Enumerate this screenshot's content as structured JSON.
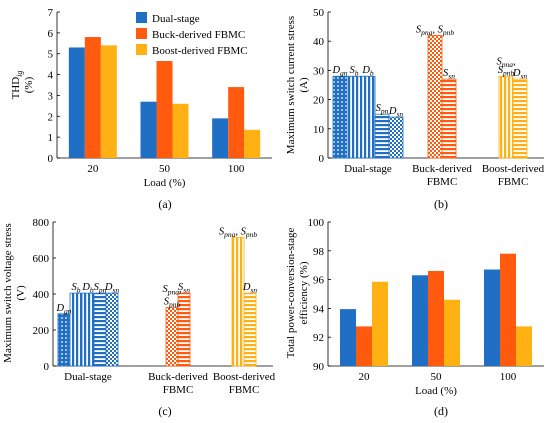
{
  "colors": {
    "dual": "#1f6fc5",
    "buck": "#ff5a0e",
    "boost": "#ffb012",
    "dual_light": "#5aa0e8",
    "buck_light": "#ff8a4a",
    "boost_light": "#ffd24a"
  },
  "legend": {
    "dual": "Dual-stage",
    "buck": "Buck-derived FBMC",
    "boost": "Boost-derived FBMC"
  },
  "chart_data": [
    {
      "panel": "(a)",
      "type": "bar",
      "ylabel_main": "THD",
      "ylabel_sub": "ig",
      "ylabel_unit": "(%)",
      "xlabel": "Load (%)",
      "ylim": [
        0,
        7
      ],
      "yticks": [
        "0",
        "1",
        "2",
        "3",
        "4",
        "5",
        "6",
        "7"
      ],
      "categories": [
        "20",
        "50",
        "100"
      ],
      "series": [
        {
          "name": "Dual-stage",
          "values": [
            5.3,
            2.7,
            1.9
          ]
        },
        {
          "name": "Buck-derived FBMC",
          "values": [
            5.8,
            4.65,
            3.4
          ]
        },
        {
          "name": "Boost-derived FBMC",
          "values": [
            5.4,
            2.6,
            1.35
          ]
        }
      ]
    },
    {
      "panel": "(b)",
      "type": "bar",
      "ylabel": "Maximum switch current stress",
      "ylabel_unit": "(A)",
      "ylim": [
        0,
        50
      ],
      "yticks": [
        "0",
        "10",
        "20",
        "30",
        "40",
        "50"
      ],
      "groups": [
        {
          "label": [
            "Dual-stage"
          ],
          "bars": [
            {
              "color": "dual",
              "pattern": "dots",
              "value": 28
            },
            {
              "color": "dual",
              "pattern": "vlines",
              "value": 28
            },
            {
              "color": "dual",
              "pattern": "vlines",
              "value": 28
            },
            {
              "color": "dual",
              "pattern": "hlines",
              "value": 15
            },
            {
              "color": "dual",
              "pattern": "checker",
              "value": 14
            }
          ]
        },
        {
          "label": [
            "Buck-derived",
            "FBMC"
          ],
          "bars": [
            {
              "color": "buck",
              "pattern": "checker",
              "value": 42
            },
            {
              "color": "buck",
              "pattern": "hlines",
              "value": 27
            }
          ]
        },
        {
          "label": [
            "Boost-derived",
            "FBMC"
          ],
          "bars": [
            {
              "color": "boost",
              "pattern": "vlines",
              "value": 28
            },
            {
              "color": "boost",
              "pattern": "hlines",
              "value": 27
            }
          ]
        }
      ],
      "annotations": [
        {
          "text": "D",
          "sub": "gn",
          "group": 0,
          "bar": 0,
          "value": 28
        },
        {
          "text": "S",
          "sub": "b",
          "group": 0,
          "bar": 1,
          "value": 28
        },
        {
          "text": "D",
          "sub": "b",
          "group": 0,
          "bar": 2,
          "value": 28
        },
        {
          "text": "S",
          "sub": "pn",
          "group": 0,
          "bar": 3,
          "value": 15
        },
        {
          "text": "D",
          "sub": "sn",
          "group": 0,
          "bar": 4,
          "value": 14
        },
        {
          "text": "S",
          "sub": "pna",
          "text2": ", S",
          "sub2": "pnb",
          "group": 1,
          "bar": 0,
          "value": 42
        },
        {
          "text": "S",
          "sub": "sn",
          "group": 1,
          "bar": 1,
          "value": 27
        },
        {
          "text": "S",
          "sub": "pna",
          "text2": ",",
          "group": 2,
          "bar": 0,
          "value": 31
        },
        {
          "text": "S",
          "sub": "pnb",
          "group": 2,
          "bar": 0,
          "value": 28
        },
        {
          "text": "D",
          "sub": "sn",
          "group": 2,
          "bar": 1,
          "value": 27
        }
      ]
    },
    {
      "panel": "(c)",
      "type": "bar",
      "ylabel": "Maximum switch voltage stress",
      "ylabel_unit": "(V)",
      "ylim": [
        0,
        800
      ],
      "yticks": [
        "0",
        "200",
        "400",
        "600",
        "800"
      ],
      "groups": [
        {
          "label": [
            "Dual-stage"
          ],
          "bars": [
            {
              "color": "dual",
              "pattern": "dots",
              "value": 290
            },
            {
              "color": "dual",
              "pattern": "vlines",
              "value": 405
            },
            {
              "color": "dual",
              "pattern": "vlines",
              "value": 405
            },
            {
              "color": "dual",
              "pattern": "hlines",
              "value": 405
            },
            {
              "color": "dual",
              "pattern": "checker",
              "value": 405
            }
          ]
        },
        {
          "label": [
            "Buck-derived",
            "FBMC"
          ],
          "bars": [
            {
              "color": "buck",
              "pattern": "checker",
              "value": 325
            },
            {
              "color": "buck",
              "pattern": "hlines",
              "value": 405
            }
          ]
        },
        {
          "label": [
            "Boost-derived",
            "FBMC"
          ],
          "bars": [
            {
              "color": "boost",
              "pattern": "vlines",
              "value": 715
            },
            {
              "color": "boost",
              "pattern": "hlines",
              "value": 405
            }
          ]
        }
      ],
      "annotations": [
        {
          "text": "D",
          "sub": "gn",
          "group": 0,
          "bar": 0,
          "value": 290
        },
        {
          "text": "S",
          "sub": "b",
          "group": 0,
          "bar": 1,
          "value": 405
        },
        {
          "text": "D",
          "sub": "b",
          "group": 0,
          "bar": 2,
          "value": 405
        },
        {
          "text": "S",
          "sub": "pn",
          "group": 0,
          "bar": 3,
          "value": 405
        },
        {
          "text": "D",
          "sub": "sn",
          "group": 0,
          "bar": 4,
          "value": 405
        },
        {
          "text": "S",
          "sub": "pna",
          "text2": ",",
          "group": 1,
          "bar": 0,
          "value": 395
        },
        {
          "text": "S",
          "sub": "pnb",
          "group": 1,
          "bar": 0,
          "value": 325
        },
        {
          "text": "S",
          "sub": "sn",
          "group": 1,
          "bar": 1,
          "value": 405
        },
        {
          "text": "S",
          "sub": "pna",
          "text2": ", S",
          "sub2": "pnb",
          "group": 2,
          "bar": 0,
          "value": 715
        },
        {
          "text": "D",
          "sub": "sn",
          "group": 2,
          "bar": 1,
          "value": 405
        }
      ]
    },
    {
      "panel": "(d)",
      "type": "bar",
      "ylabel": "Total power-conversion-stage",
      "ylabel_unit": "efficiency (%)",
      "xlabel": "Load (%)",
      "ylim": [
        90,
        100
      ],
      "yticks": [
        "90",
        "92",
        "94",
        "96",
        "98",
        "100"
      ],
      "categories": [
        "20",
        "50",
        "100"
      ],
      "series": [
        {
          "name": "Dual-stage",
          "values": [
            93.95,
            96.3,
            96.7
          ]
        },
        {
          "name": "Buck-derived FBMC",
          "values": [
            92.75,
            96.6,
            97.8
          ]
        },
        {
          "name": "Boost-derived FBMC",
          "values": [
            95.85,
            94.6,
            92.75
          ]
        }
      ]
    }
  ]
}
